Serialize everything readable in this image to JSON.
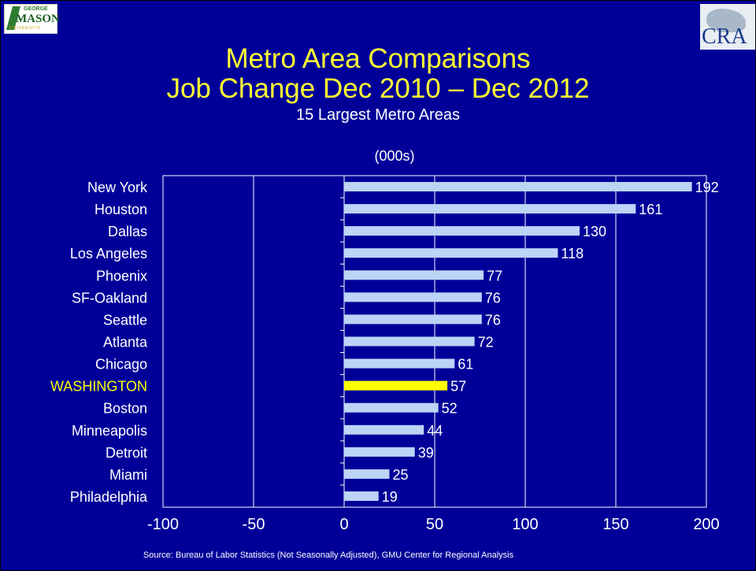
{
  "header": {
    "title_line1": "Metro Area Comparisons",
    "title_line2": "Job Change Dec 2010 – Dec 2012",
    "subtitle": "15 Largest Metro Areas",
    "unit": "(000s)"
  },
  "logos": {
    "left": {
      "line1": "GEORGE",
      "line2": "MASON",
      "line3": "UNIVERSITY"
    },
    "right": {
      "text": "CRA"
    }
  },
  "source": "Source: Bureau of Labor Statistics (Not Seasonally Adjusted), GMU Center for Regional Analysis",
  "colors": {
    "background": "#000099",
    "bar": "#bcd4f5",
    "highlight_bar": "#ffff00",
    "highlight_label": "#ffff00",
    "text": "#ffffff",
    "title": "#ffff33"
  },
  "chart_data": {
    "type": "bar",
    "orientation": "horizontal",
    "categories": [
      "New York",
      "Houston",
      "Dallas",
      "Los Angeles",
      "Phoenix",
      "SF-Oakland",
      "Seattle",
      "Atlanta",
      "Chicago",
      "WASHINGTON",
      "Boston",
      "Minneapolis",
      "Detroit",
      "Miami",
      "Philadelphia"
    ],
    "values": [
      192,
      161,
      130,
      118,
      77,
      76,
      76,
      72,
      61,
      57,
      52,
      44,
      39,
      25,
      19
    ],
    "highlight": "WASHINGTON",
    "title": "Metro Area Comparisons Job Change Dec 2010 – Dec 2012",
    "subtitle": "15 Largest Metro Areas",
    "xlabel": "(000s)",
    "ylabel": "",
    "xlim": [
      -100,
      200
    ],
    "xticks": [
      -100,
      -50,
      0,
      50,
      100,
      150,
      200
    ],
    "grid": true
  }
}
